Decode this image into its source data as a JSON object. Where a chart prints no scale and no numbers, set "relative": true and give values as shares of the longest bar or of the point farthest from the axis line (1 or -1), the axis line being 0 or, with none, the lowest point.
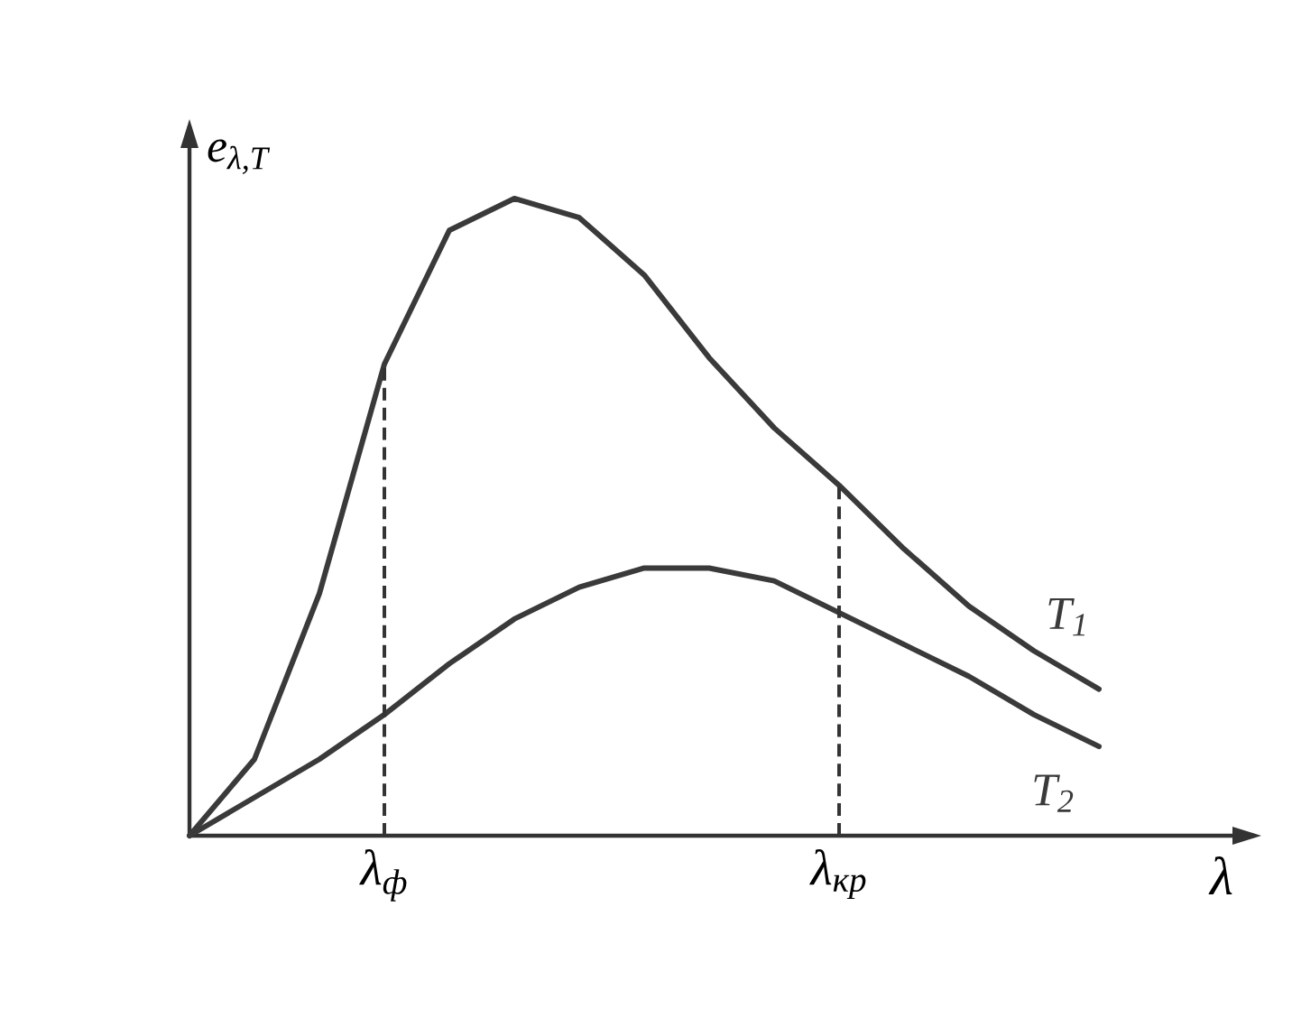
{
  "chart_data": {
    "type": "line",
    "relative": true,
    "xlabel": "λ",
    "ylabel": "e$_{λ,T}$",
    "categories": [
      null,
      null,
      null,
      "λ$_{ф}$",
      null,
      null,
      null,
      null,
      null,
      null,
      "λ$_{кр}$",
      null,
      null,
      null,
      null
    ],
    "series": [
      {
        "name": "T$_{1}$",
        "color": "#3a3a3a",
        "values": [
          0,
          0.12,
          0.38,
          0.74,
          0.95,
          1.0,
          0.97,
          0.88,
          0.75,
          0.64,
          0.55,
          0.45,
          0.36,
          0.29,
          0.23
        ]
      },
      {
        "name": "T$_{2}$",
        "color": "#3a3a3a",
        "values": [
          0,
          0.06,
          0.12,
          0.19,
          0.27,
          0.34,
          0.39,
          0.42,
          0.42,
          0.4,
          0.35,
          0.3,
          0.25,
          0.19,
          0.14
        ]
      }
    ],
    "ref_lines": [
      {
        "axis": "x",
        "value": "λ$_{ф}$",
        "line_style": "dashed"
      },
      {
        "axis": "x",
        "value": "λ$_{кр}$",
        "line_style": "dashed"
      }
    ]
  }
}
